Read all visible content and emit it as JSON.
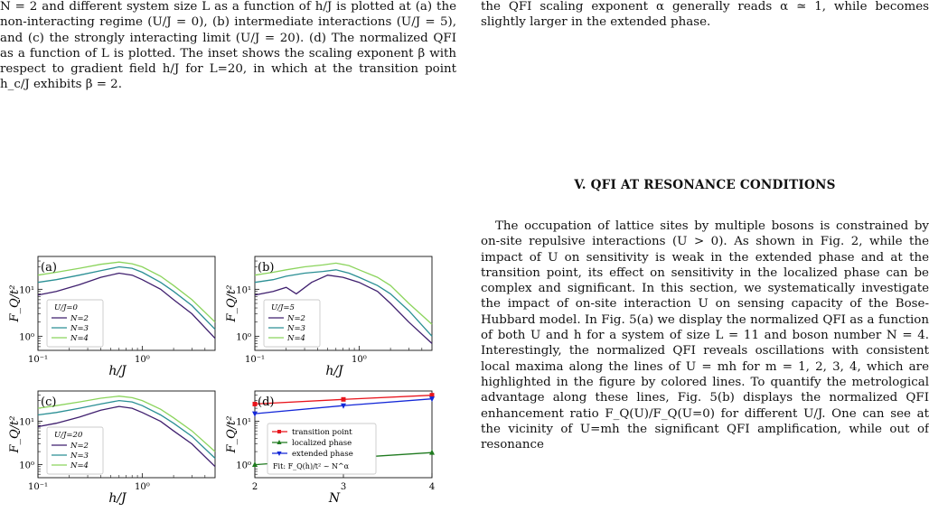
{
  "caption": {
    "text": "N = 2 and different system size L as a function of h/J is plotted at (a) the non-interacting regime (U/J = 0), (b) intermediate interactions (U/J = 5), and (c) the strongly interacting limit (U/J = 20). (d) The normalized QFI as a function of L is plotted. The inset shows the scaling exponent β with respect to gradient field h/J for L=20, in which at the transition point h_c/J exhibits β = 2."
  },
  "right_column": {
    "top_text": "the QFI scaling exponent α generally reads α ≃ 1, while becomes slightly larger in the extended phase.",
    "section_title": "V.   QFI AT RESONANCE CONDITIONS",
    "body": "The occupation of lattice sites by multiple bosons is constrained by on-site repulsive interactions (U > 0). As shown in Fig. 2, while the impact of U on sensitivity is weak in the extended phase and at the transition point, its effect on sensitivity in the localized phase can be complex and significant. In this section, we systematically investigate the impact of on-site interaction U on sensing capacity of the Bose-Hubbard model. In Fig. 5(a) we display the normalized QFI as a function of both U and h for a system of size L = 11 and boson number N = 4. Interestingly, the normalized QFI reveals oscillations with consistent local maxima along the lines of U = mh for m = 1, 2, 3, 4, which are highlighted in the figure by colored lines. To quantify the metrological advantage along these lines, Fig. 5(b) displays the normalized QFI enhancement ratio F_Q(U)/F_Q(U=0) for different U/J. One can see at the vicinity of U=mh the significant QFI amplification, while out of resonance"
  },
  "chart_data": [
    {
      "type": "line",
      "panel_label": "(a)",
      "xscale": "log",
      "yscale": "log",
      "xlabel": "h/J",
      "ylabel": "F_Q/t²",
      "xlim": [
        0.1,
        5
      ],
      "ylim": [
        0.5,
        50
      ],
      "xticks": [
        "10⁻¹",
        "10⁰"
      ],
      "yticks": [
        "10⁰",
        "10¹"
      ],
      "legend_title": "U/J=0",
      "colors": [
        "#3f1f6e",
        "#2a8f94",
        "#8bd45c"
      ],
      "series": [
        {
          "name": "N=2",
          "x": [
            0.1,
            0.15,
            0.25,
            0.4,
            0.6,
            0.8,
            1,
            1.5,
            2,
            3,
            5
          ],
          "y": [
            7.5,
            9,
            12.5,
            18,
            22,
            20,
            16,
            10,
            6,
            3,
            0.9
          ]
        },
        {
          "name": "N=3",
          "x": [
            0.1,
            0.15,
            0.25,
            0.4,
            0.6,
            0.8,
            1,
            1.5,
            2,
            3,
            5
          ],
          "y": [
            14,
            16,
            20,
            25,
            30,
            28,
            23,
            14,
            9,
            4.5,
            1.4
          ]
        },
        {
          "name": "N=4",
          "x": [
            0.1,
            0.15,
            0.25,
            0.4,
            0.6,
            0.8,
            1,
            1.5,
            2,
            3,
            5
          ],
          "y": [
            20,
            23,
            28,
            34,
            38,
            35,
            30,
            19,
            12,
            6,
            2
          ]
        }
      ]
    },
    {
      "type": "line",
      "panel_label": "(b)",
      "xscale": "log",
      "yscale": "log",
      "xlabel": "h/J",
      "ylabel": "F_Q/t²",
      "xlim": [
        0.1,
        5
      ],
      "ylim": [
        0.5,
        50
      ],
      "xticks": [
        "10⁻¹",
        "10⁰"
      ],
      "yticks": [
        "10⁰",
        "10¹"
      ],
      "legend_title": "U/J=5",
      "colors": [
        "#3f1f6e",
        "#2a8f94",
        "#8bd45c"
      ],
      "series": [
        {
          "name": "N=2",
          "x": [
            0.1,
            0.15,
            0.2,
            0.25,
            0.35,
            0.5,
            0.7,
            1,
            1.5,
            2,
            3,
            5
          ],
          "y": [
            7.5,
            9,
            11,
            8,
            14,
            20,
            18,
            14,
            9,
            5,
            2,
            0.7
          ]
        },
        {
          "name": "N=3",
          "x": [
            0.1,
            0.15,
            0.2,
            0.3,
            0.45,
            0.6,
            0.8,
            1,
            1.5,
            2,
            3,
            5
          ],
          "y": [
            14,
            16,
            19,
            22,
            24,
            26,
            22,
            18,
            12,
            8,
            3.5,
            1
          ]
        },
        {
          "name": "N=4",
          "x": [
            0.1,
            0.15,
            0.2,
            0.3,
            0.45,
            0.6,
            0.8,
            1,
            1.5,
            2,
            3,
            5
          ],
          "y": [
            20,
            23,
            26,
            30,
            33,
            36,
            32,
            26,
            18,
            12,
            5,
            1.8
          ]
        }
      ]
    },
    {
      "type": "line",
      "panel_label": "(c)",
      "xscale": "log",
      "yscale": "log",
      "xlabel": "h/J",
      "ylabel": "F_Q/t²",
      "xlim": [
        0.1,
        5
      ],
      "ylim": [
        0.5,
        50
      ],
      "xticks": [
        "10⁻¹",
        "10⁰"
      ],
      "yticks": [
        "10⁰",
        "10¹"
      ],
      "legend_title": "U/J=20",
      "colors": [
        "#3f1f6e",
        "#2a8f94",
        "#8bd45c"
      ],
      "series": [
        {
          "name": "N=2",
          "x": [
            0.1,
            0.15,
            0.25,
            0.4,
            0.6,
            0.8,
            1,
            1.5,
            2,
            3,
            5
          ],
          "y": [
            7.5,
            9,
            12.5,
            18,
            22,
            20,
            16,
            10,
            6,
            3,
            0.9
          ]
        },
        {
          "name": "N=3",
          "x": [
            0.1,
            0.15,
            0.25,
            0.4,
            0.6,
            0.8,
            1,
            1.5,
            2,
            3,
            5
          ],
          "y": [
            14,
            16,
            20,
            25,
            30,
            28,
            23,
            14,
            9,
            4.5,
            1.4
          ]
        },
        {
          "name": "N=4",
          "x": [
            0.1,
            0.15,
            0.25,
            0.4,
            0.6,
            0.8,
            1,
            1.5,
            2,
            3,
            5
          ],
          "y": [
            20,
            23,
            28,
            34,
            38,
            35,
            30,
            19,
            12,
            6,
            2
          ]
        }
      ]
    },
    {
      "type": "line",
      "panel_label": "(d)",
      "xscale": "linear",
      "yscale": "log",
      "xlabel": "N",
      "ylabel": "F_Q/t²",
      "xlim": [
        2,
        4
      ],
      "ylim": [
        0.5,
        50
      ],
      "xticks": [
        "2",
        "3",
        "4"
      ],
      "yticks": [
        "10⁰",
        "10¹"
      ],
      "legend_fit": "Fit: F_Q(h)/t² ~ N^α",
      "series": [
        {
          "name": "transition point",
          "color": "#e8141c",
          "marker": "square",
          "x": [
            2,
            3,
            4
          ],
          "y": [
            25,
            32,
            40
          ]
        },
        {
          "name": "localized phase",
          "color": "#1f7a1f",
          "marker": "triangle-up",
          "x": [
            2,
            3,
            4
          ],
          "y": [
            1.0,
            1.4,
            1.9
          ]
        },
        {
          "name": "extended phase",
          "color": "#1428d8",
          "marker": "triangle-down",
          "x": [
            2,
            3,
            4
          ],
          "y": [
            15,
            23,
            33
          ]
        }
      ]
    }
  ]
}
